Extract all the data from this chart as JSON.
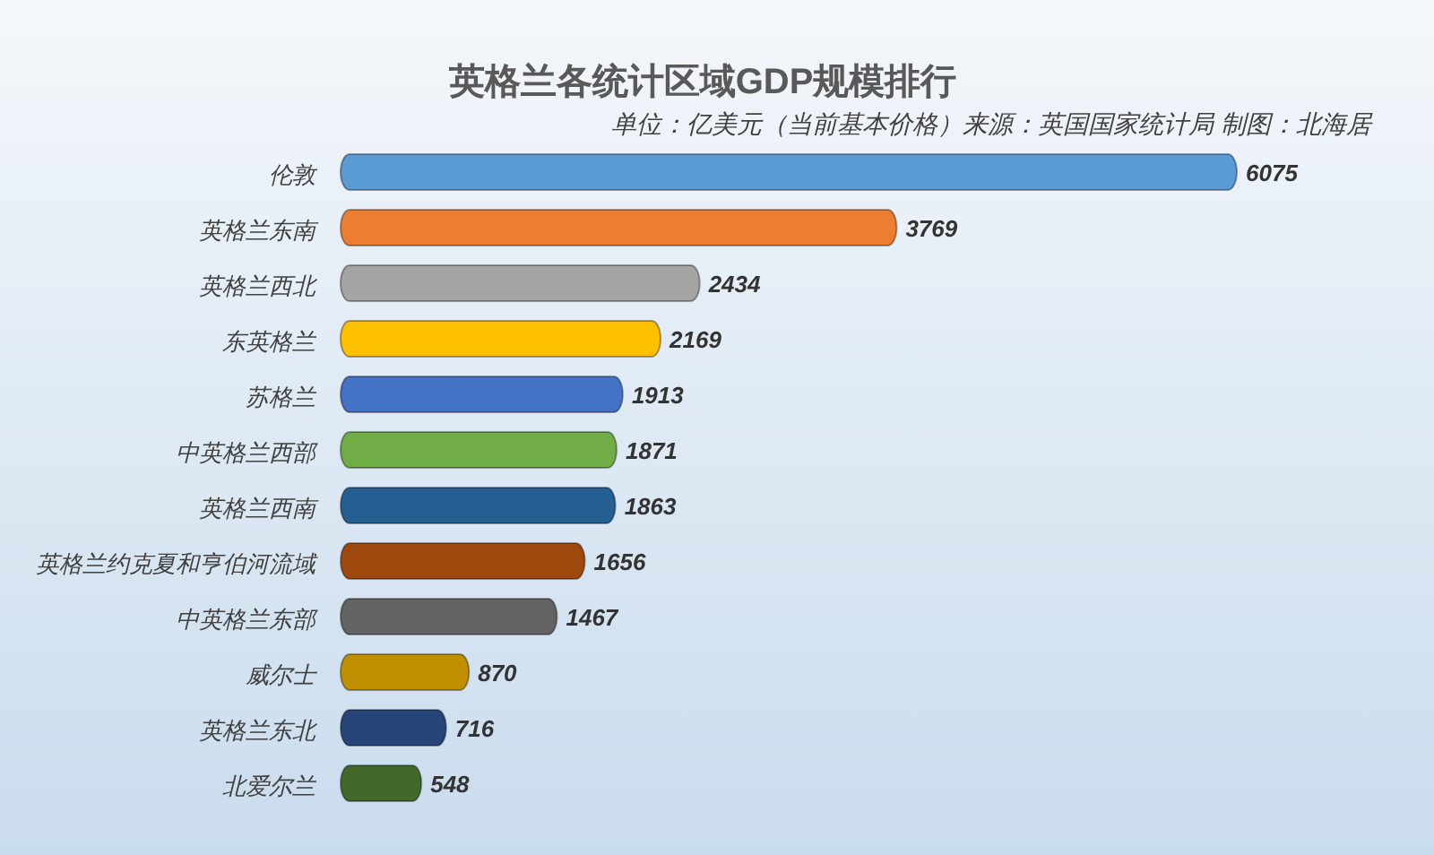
{
  "chart_data": {
    "type": "bar",
    "orientation": "horizontal",
    "title": "英格兰各统计区域GDP规模排行",
    "subtitle": "单位：亿美元（当前基本价格）来源：英国国家统计局  制图：北海居",
    "categories": [
      "伦敦",
      "英格兰东南",
      "英格兰西北",
      "东英格兰",
      "苏格兰",
      "中英格兰西部",
      "英格兰西南",
      "英格兰约克夏和亨伯河流域",
      "中英格兰东部",
      "威尔士",
      "英格兰东北",
      "北爱尔兰"
    ],
    "values": [
      6075,
      3769,
      2434,
      2169,
      1913,
      1871,
      1863,
      1656,
      1467,
      870,
      716,
      548
    ],
    "colors": [
      "#5b9bd5",
      "#ed7d31",
      "#a5a5a5",
      "#ffc000",
      "#4472c4",
      "#70ad47",
      "#255e91",
      "#9e480e",
      "#636363",
      "#c09000",
      "#264478",
      "#43682b"
    ],
    "data_labels": true
  }
}
